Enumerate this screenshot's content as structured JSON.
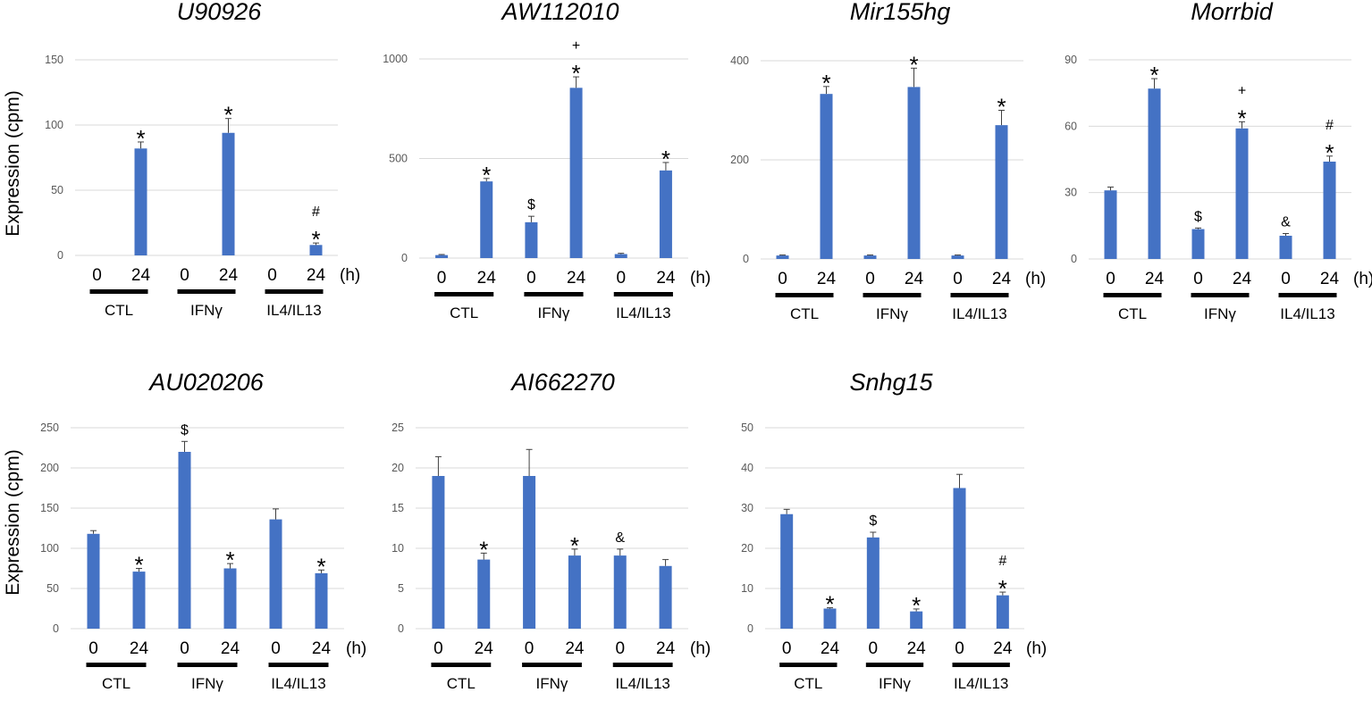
{
  "figure": {
    "ylabel": "Expression (cpm)",
    "time_unit": "(h)",
    "group_labels": [
      "CTL",
      "IFNγ",
      "IL4/IL13"
    ],
    "time_labels": [
      "0",
      "24"
    ],
    "bar_color": "#4472C4"
  },
  "chart_data": [
    {
      "type": "bar",
      "title": "U90926",
      "ylabel": "Expression (cpm)",
      "categories": [
        "0",
        "24",
        "0",
        "24",
        "0",
        "24"
      ],
      "groups": [
        "CTL",
        "IFNγ",
        "IL4/IL13"
      ],
      "values": [
        0,
        82,
        0,
        94,
        0,
        8
      ],
      "errors": [
        0,
        5,
        0,
        11,
        0,
        1.5
      ],
      "yticks": [
        0,
        50,
        100,
        150
      ],
      "ylim": [
        0,
        150
      ],
      "annotations": [
        [],
        [
          "*"
        ],
        [],
        [
          "*"
        ],
        [],
        [
          "#",
          "*"
        ]
      ]
    },
    {
      "type": "bar",
      "title": "AW112010",
      "ylabel": "",
      "categories": [
        "0",
        "24",
        "0",
        "24",
        "0",
        "24"
      ],
      "groups": [
        "CTL",
        "IFNγ",
        "IL4/IL13"
      ],
      "values": [
        15,
        385,
        180,
        855,
        20,
        440
      ],
      "errors": [
        3,
        15,
        30,
        55,
        4,
        40
      ],
      "yticks": [
        0,
        500,
        1000
      ],
      "ylim": [
        0,
        1000
      ],
      "annotations": [
        [],
        [
          "*"
        ],
        [
          "$"
        ],
        [
          "+",
          "*"
        ],
        [],
        [
          "*"
        ]
      ]
    },
    {
      "type": "bar",
      "title": "Mir155hg",
      "ylabel": "",
      "categories": [
        "0",
        "24",
        "0",
        "24",
        "0",
        "24"
      ],
      "groups": [
        "CTL",
        "IFNγ",
        "IL4/IL13"
      ],
      "values": [
        7,
        333,
        7,
        347,
        7,
        270
      ],
      "errors": [
        1,
        15,
        1,
        38,
        1,
        30
      ],
      "yticks": [
        0,
        200,
        400
      ],
      "ylim": [
        0,
        400
      ],
      "annotations": [
        [],
        [
          "*"
        ],
        [],
        [
          "*"
        ],
        [],
        [
          "*"
        ]
      ]
    },
    {
      "type": "bar",
      "title": "Morrbid",
      "ylabel": "",
      "categories": [
        "0",
        "24",
        "0",
        "24",
        "0",
        "24"
      ],
      "groups": [
        "CTL",
        "IFNγ",
        "IL4/IL13"
      ],
      "values": [
        31,
        77,
        13.5,
        59,
        10.5,
        44
      ],
      "errors": [
        1.5,
        4.5,
        0.5,
        3,
        1,
        2.5
      ],
      "yticks": [
        0,
        30,
        60,
        90
      ],
      "ylim": [
        0,
        90
      ],
      "annotations": [
        [],
        [
          "*"
        ],
        [
          "$"
        ],
        [
          "+",
          "*"
        ],
        [
          "&"
        ],
        [
          "#",
          "*"
        ]
      ]
    },
    {
      "type": "bar",
      "title": "AU020206",
      "ylabel": "Expression (cpm)",
      "categories": [
        "0",
        "24",
        "0",
        "24",
        "0",
        "24"
      ],
      "groups": [
        "CTL",
        "IFNγ",
        "IL4/IL13"
      ],
      "values": [
        118,
        71,
        220,
        75,
        136,
        69
      ],
      "errors": [
        4,
        4,
        13,
        6,
        13,
        4
      ],
      "yticks": [
        0,
        50,
        100,
        150,
        200,
        250
      ],
      "ylim": [
        0,
        250
      ],
      "annotations": [
        [],
        [
          "*"
        ],
        [
          "$"
        ],
        [
          "*"
        ],
        [],
        [
          "*"
        ]
      ]
    },
    {
      "type": "bar",
      "title": "AI662270",
      "ylabel": "",
      "categories": [
        "0",
        "24",
        "0",
        "24",
        "0",
        "24"
      ],
      "groups": [
        "CTL",
        "IFNγ",
        "IL4/IL13"
      ],
      "values": [
        19,
        8.6,
        19,
        9.1,
        9.1,
        7.8
      ],
      "errors": [
        2.4,
        0.8,
        3.3,
        0.8,
        0.8,
        0.8
      ],
      "yticks": [
        0,
        5,
        10,
        15,
        20,
        25
      ],
      "ylim": [
        0,
        25
      ],
      "annotations": [
        [],
        [
          "*"
        ],
        [],
        [
          "*"
        ],
        [
          "&"
        ],
        []
      ]
    },
    {
      "type": "bar",
      "title": "Snhg15",
      "ylabel": "",
      "categories": [
        "0",
        "24",
        "0",
        "24",
        "0",
        "24"
      ],
      "groups": [
        "CTL",
        "IFNγ",
        "IL4/IL13"
      ],
      "values": [
        28.5,
        5,
        22.7,
        4.3,
        35,
        8.3
      ],
      "errors": [
        1.2,
        0.2,
        1.3,
        0.6,
        3.4,
        0.8
      ],
      "yticks": [
        0,
        10,
        20,
        30,
        40,
        50
      ],
      "ylim": [
        0,
        50
      ],
      "annotations": [
        [],
        [
          "*"
        ],
        [
          "$"
        ],
        [
          "*"
        ],
        [],
        [
          "#",
          "*"
        ]
      ]
    }
  ]
}
